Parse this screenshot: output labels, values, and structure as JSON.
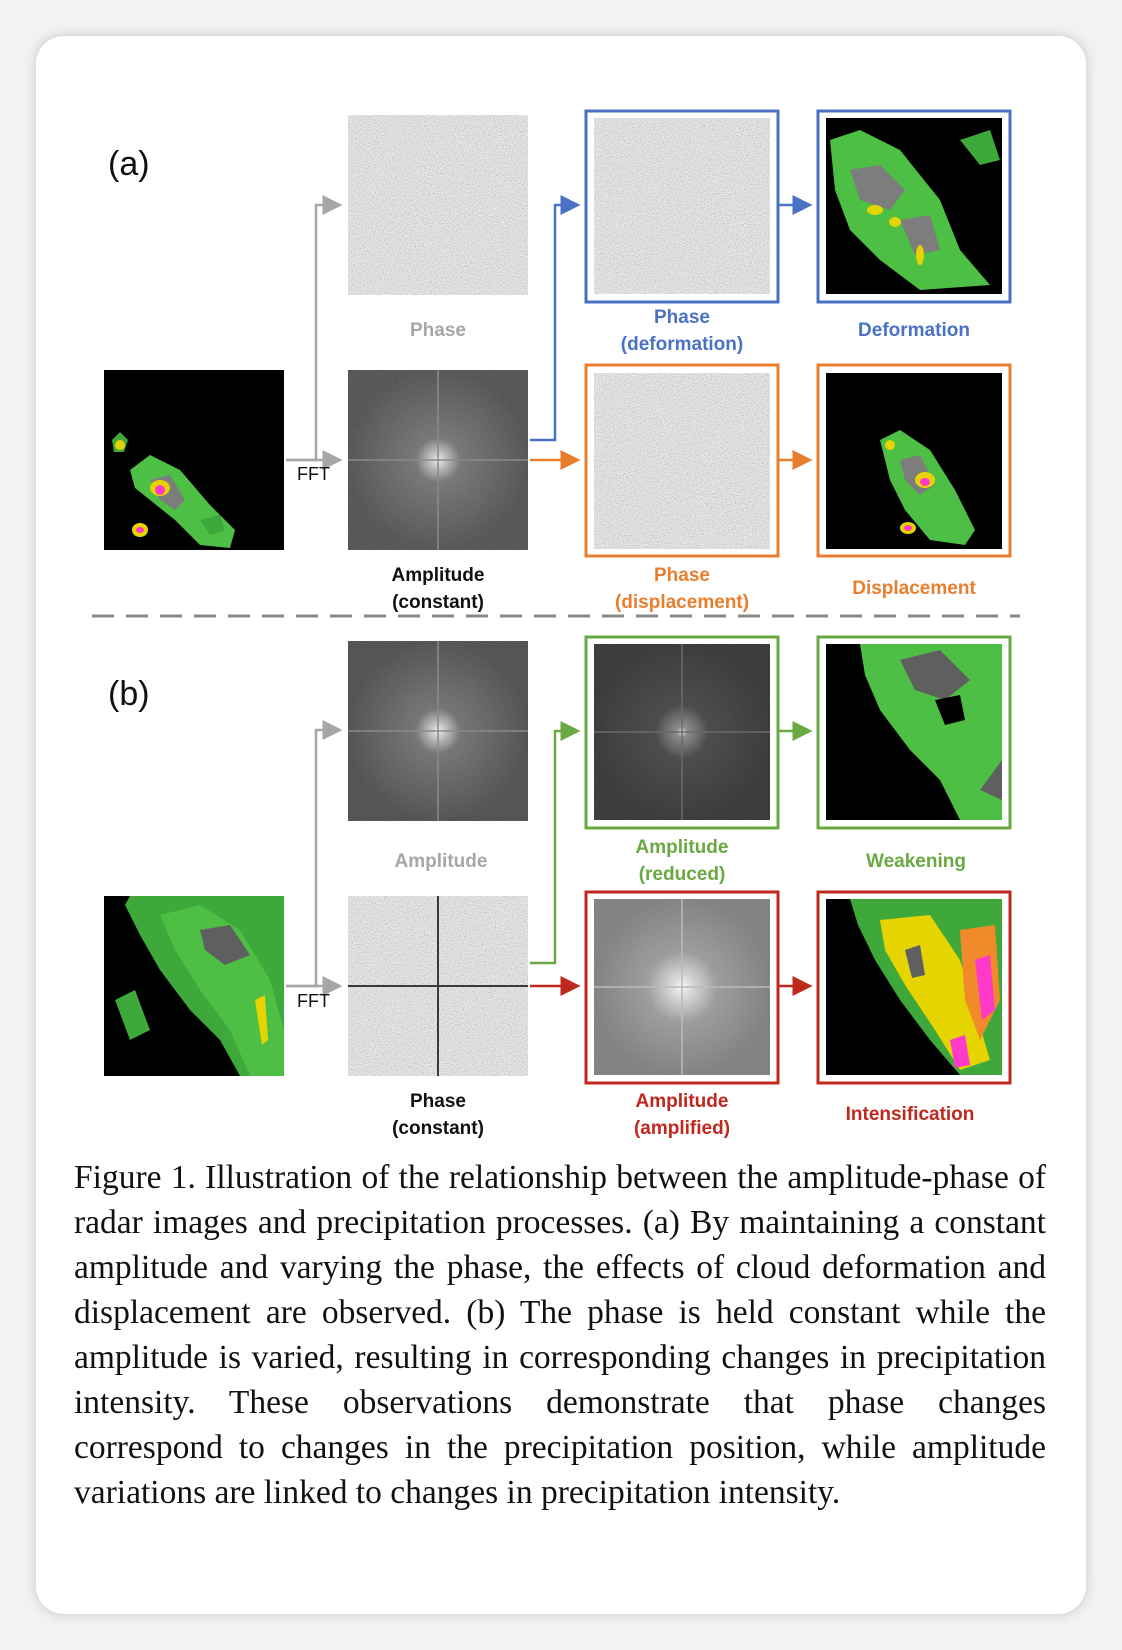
{
  "panel_a": {
    "letter": "(a)",
    "fft_label": "FFT",
    "phase_label": "Phase",
    "amplitude_label_1": "Amplitude",
    "amplitude_label_2": "(constant)",
    "phase_def_1": "Phase",
    "phase_def_2": "(deformation)",
    "phase_disp_1": "Phase",
    "phase_disp_2": "(displacement)",
    "deformation_label": "Deformation",
    "displacement_label": "Displacement"
  },
  "panel_b": {
    "letter": "(b)",
    "fft_label": "FFT",
    "amplitude_label": "Amplitude",
    "phase_label_1": "Phase",
    "phase_label_2": "(constant)",
    "amp_reduced_1": "Amplitude",
    "amp_reduced_2": "(reduced)",
    "amp_amplified_1": "Amplitude",
    "amp_amplified_2": "(amplified)",
    "weakening_label": "Weakening",
    "intensification_label": "Intensification"
  },
  "colors": {
    "deformation": "#4a72c4",
    "displacement": "#e87e2e",
    "reduced": "#6aa842",
    "amplified": "#c0281e",
    "neutral": "#a6a6a6"
  },
  "caption": "Figure 1. Illustration of the relationship between the amplitude-phase of radar images and precipitation processes. (a) By maintaining a constant amplitude and varying the phase, the effects of cloud deformation and displacement are observed. (b) The phase is held constant while the amplitude is varied, resulting in corresponding changes in precipitation intensity. These observations demonstrate that phase changes correspond to changes in the precipitation position, while amplitude variations are linked to changes in precipitation intensity."
}
